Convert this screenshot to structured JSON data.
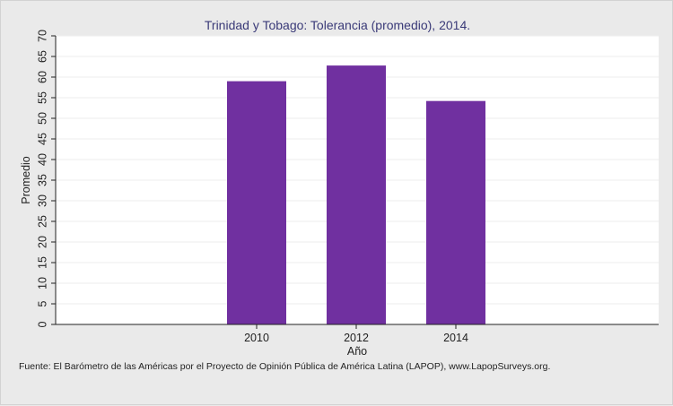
{
  "chart_data": {
    "type": "bar",
    "title": "Trinidad y Tobago: Tolerancia (promedio), 2014.",
    "xlabel": "Año",
    "ylabel": "Promedio",
    "categories": [
      "2010",
      "2012",
      "2014"
    ],
    "values": [
      59,
      62.8,
      54.2
    ],
    "ylim": [
      0,
      70
    ],
    "yticks": [
      "0",
      "5",
      "10",
      "15",
      "20",
      "25",
      "30",
      "35",
      "40",
      "45",
      "50",
      "55",
      "60",
      "65",
      "70"
    ],
    "grid": true,
    "bar_color": "#7030a0",
    "plot_background": "#ffffff",
    "source": "Fuente: El Barómetro de las Américas por el Proyecto de Opinión Pública de América Latina (LAPOP), www.LapopSurveys.org."
  }
}
